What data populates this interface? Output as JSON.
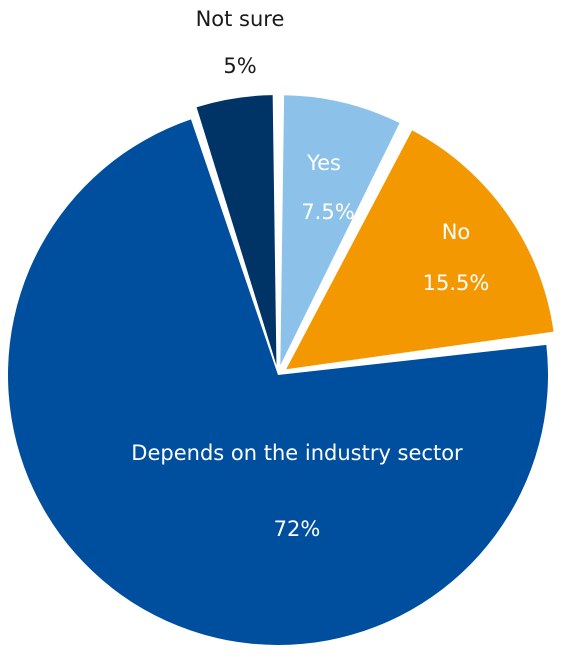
{
  "chart_data": {
    "type": "pie",
    "title": "",
    "slices": [
      {
        "label": "Yes",
        "value_label": "7.5%",
        "value": 7.5,
        "color": "#8cc2ea",
        "text_color": "#ffffff"
      },
      {
        "label": "No",
        "value_label": "15.5%",
        "value": 15.5,
        "color": "#f39800",
        "text_color": "#ffffff"
      },
      {
        "label": "Depends on the industry sector",
        "value_label": "72%",
        "value": 72,
        "color": "#004f9f",
        "text_color": "#ffffff"
      },
      {
        "label": "Not sure",
        "value_label": "5%",
        "value": 5,
        "color": "#003366",
        "text_color": "#1a1a1a"
      }
    ],
    "start_angle_deg": 0,
    "direction": "clockwise",
    "legend": "none",
    "labels": "on-slices"
  }
}
